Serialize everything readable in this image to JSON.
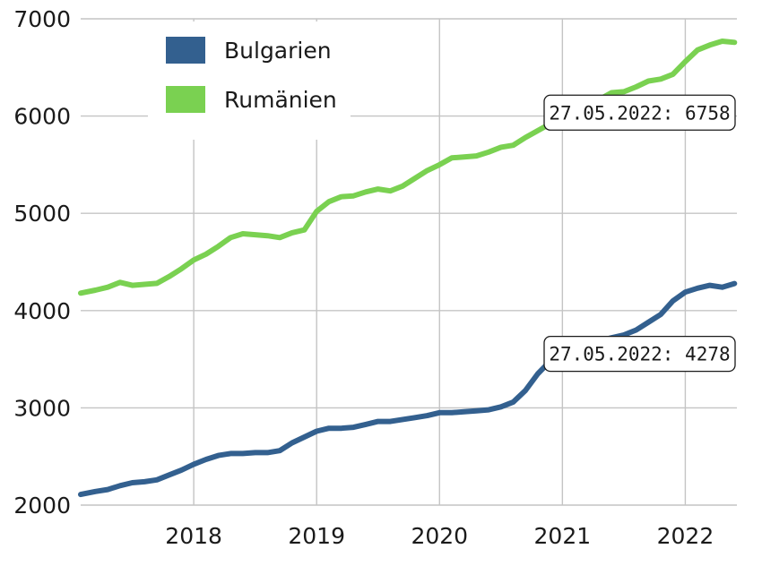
{
  "chart_data": {
    "type": "line",
    "title": "",
    "xlabel": "",
    "ylabel": "",
    "xlim": [
      2017.08,
      2022.42
    ],
    "ylim": [
      2000,
      7000
    ],
    "grid": true,
    "legend_position": "top-left",
    "x_ticks": [
      2018,
      2019,
      2020,
      2021,
      2022
    ],
    "x_tick_labels": [
      "2018",
      "2019",
      "2020",
      "2021",
      "2022"
    ],
    "y_ticks": [
      2000,
      3000,
      4000,
      5000,
      6000,
      7000
    ],
    "y_tick_labels": [
      "2000",
      "3000",
      "4000",
      "5000",
      "6000",
      "7000"
    ],
    "series": [
      {
        "name": "Bulgarien",
        "color": "#33608f",
        "x": [
          2017.08,
          2017.2,
          2017.3,
          2017.4,
          2017.5,
          2017.6,
          2017.7,
          2017.8,
          2017.9,
          2018.0,
          2018.1,
          2018.2,
          2018.3,
          2018.4,
          2018.5,
          2018.6,
          2018.7,
          2018.8,
          2018.9,
          2019.0,
          2019.1,
          2019.2,
          2019.3,
          2019.4,
          2019.5,
          2019.6,
          2019.7,
          2019.8,
          2019.9,
          2020.0,
          2020.1,
          2020.2,
          2020.3,
          2020.4,
          2020.5,
          2020.6,
          2020.7,
          2020.8,
          2020.9,
          2021.0,
          2021.1,
          2021.2,
          2021.3,
          2021.4,
          2021.5,
          2021.6,
          2021.7,
          2021.8,
          2021.9,
          2022.0,
          2022.1,
          2022.2,
          2022.3,
          2022.4
        ],
        "values": [
          2110,
          2140,
          2160,
          2200,
          2230,
          2240,
          2260,
          2310,
          2360,
          2420,
          2470,
          2510,
          2530,
          2530,
          2540,
          2540,
          2560,
          2640,
          2700,
          2760,
          2790,
          2790,
          2800,
          2830,
          2860,
          2860,
          2880,
          2900,
          2920,
          2950,
          2950,
          2960,
          2970,
          2980,
          3010,
          3060,
          3180,
          3350,
          3480,
          3540,
          3580,
          3620,
          3690,
          3720,
          3750,
          3800,
          3880,
          3960,
          4100,
          4190,
          4230,
          4260,
          4240,
          4278
        ]
      },
      {
        "name": "Rumänien",
        "color": "#7ad151",
        "x": [
          2017.08,
          2017.2,
          2017.3,
          2017.4,
          2017.5,
          2017.6,
          2017.7,
          2017.8,
          2017.9,
          2018.0,
          2018.1,
          2018.2,
          2018.3,
          2018.4,
          2018.5,
          2018.6,
          2018.7,
          2018.8,
          2018.9,
          2019.0,
          2019.1,
          2019.2,
          2019.3,
          2019.4,
          2019.5,
          2019.6,
          2019.7,
          2019.8,
          2019.9,
          2020.0,
          2020.1,
          2020.2,
          2020.3,
          2020.4,
          2020.5,
          2020.6,
          2020.7,
          2020.8,
          2020.9,
          2021.0,
          2021.1,
          2021.2,
          2021.3,
          2021.4,
          2021.5,
          2021.6,
          2021.7,
          2021.8,
          2021.9,
          2022.0,
          2022.1,
          2022.2,
          2022.3,
          2022.4
        ],
        "values": [
          4180,
          4210,
          4240,
          4290,
          4260,
          4270,
          4280,
          4350,
          4430,
          4520,
          4580,
          4660,
          4750,
          4790,
          4780,
          4770,
          4750,
          4800,
          4830,
          5020,
          5120,
          5170,
          5180,
          5220,
          5250,
          5230,
          5280,
          5360,
          5440,
          5500,
          5570,
          5580,
          5590,
          5630,
          5680,
          5700,
          5780,
          5850,
          5920,
          5950,
          5950,
          6050,
          6170,
          6240,
          6250,
          6300,
          6360,
          6380,
          6430,
          6560,
          6680,
          6730,
          6770,
          6758
        ]
      }
    ],
    "annotations": [
      {
        "text": "27.05.2022: 6758",
        "series": "Rumänien",
        "x": 2022.4,
        "y": 6758
      },
      {
        "text": "27.05.2022: 4278",
        "series": "Bulgarien",
        "x": 2022.4,
        "y": 4278
      }
    ]
  }
}
